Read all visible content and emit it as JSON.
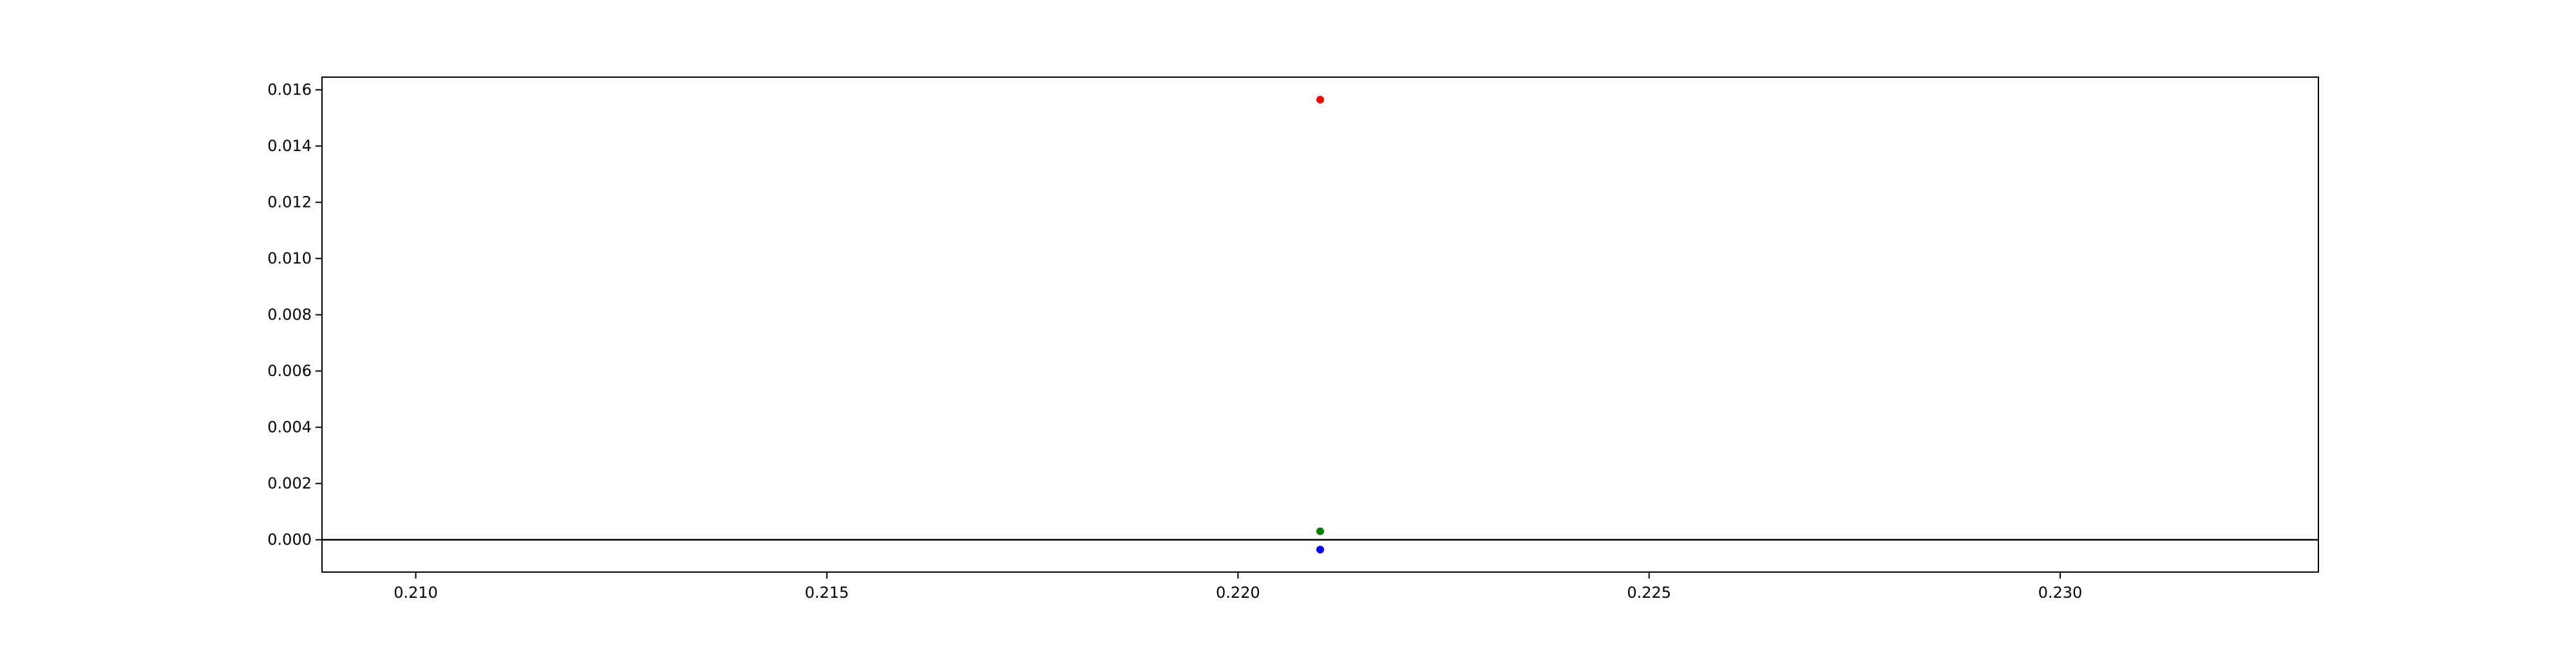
{
  "chart_data": {
    "type": "scatter",
    "title": "",
    "xlabel": "",
    "ylabel": "",
    "xlim": [
      0.20886,
      0.23314
    ],
    "ylim": [
      -0.00115,
      0.01645
    ],
    "x_ticks": [
      0.21,
      0.215,
      0.22,
      0.225,
      0.23
    ],
    "x_tick_labels": [
      "0.210",
      "0.215",
      "0.220",
      "0.225",
      "0.230"
    ],
    "y_ticks": [
      0.0,
      0.002,
      0.004,
      0.006,
      0.008,
      0.01,
      0.012,
      0.014,
      0.016
    ],
    "y_tick_labels": [
      "0.000",
      "0.002",
      "0.004",
      "0.006",
      "0.008",
      "0.010",
      "0.012",
      "0.014",
      "0.016"
    ],
    "hline": 0.0,
    "grid": false,
    "series": [
      {
        "name": "red",
        "color": "#ff0000",
        "x": [
          0.221
        ],
        "y": [
          0.01565
        ]
      },
      {
        "name": "green",
        "color": "#008000",
        "x": [
          0.221
        ],
        "y": [
          0.0003
        ]
      },
      {
        "name": "blue",
        "color": "#0000ff",
        "x": [
          0.221
        ],
        "y": [
          -0.00035
        ]
      }
    ]
  }
}
